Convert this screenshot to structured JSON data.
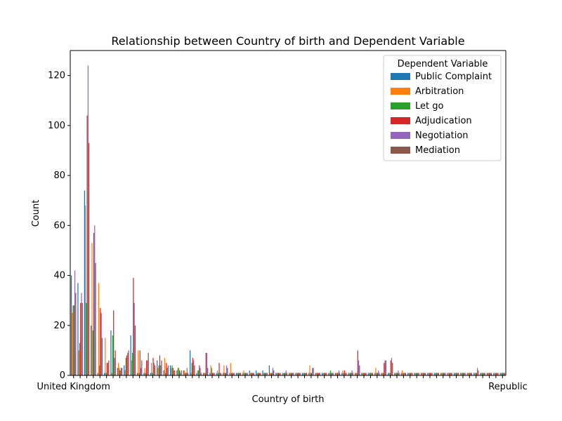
{
  "chart_data": {
    "type": "bar",
    "title": "Relationship between Country of birth and Dependent Variable",
    "xlabel": "Country of birth",
    "ylabel": "Count",
    "ylim": [
      0,
      130
    ],
    "yticks": [
      0,
      20,
      40,
      60,
      80,
      100,
      120
    ],
    "legend_title": "Dependent Variable",
    "legend_position": "top-right",
    "visible_category_labels": [
      "United Kingdom",
      "Republic"
    ],
    "colors": [
      "#1f77b4",
      "#ff7f0e",
      "#2ca02c",
      "#d62728",
      "#9467bd",
      "#8c564b"
    ],
    "series": [
      {
        "name": "Public Complaint",
        "values": [
          40,
          37,
          74,
          20,
          1,
          1,
          18,
          3,
          4,
          16,
          1,
          1,
          1,
          6,
          2,
          4,
          2,
          2,
          10,
          1,
          1,
          1,
          1,
          1,
          1,
          1,
          1,
          2,
          2,
          2,
          4,
          1,
          1,
          1,
          1,
          1,
          1,
          1,
          1,
          1,
          1,
          1,
          1,
          1,
          1,
          1,
          1,
          1,
          1,
          1,
          1,
          1,
          1,
          1,
          1,
          1,
          1,
          1,
          1,
          1,
          1,
          1,
          1,
          1,
          1,
          1
        ]
      },
      {
        "name": "Arbitration",
        "values": [
          25,
          10,
          68,
          53,
          37,
          15,
          1,
          5,
          2,
          6,
          10,
          3,
          5,
          3,
          7,
          3,
          3,
          2,
          1,
          2,
          1,
          4,
          2,
          4,
          5,
          1,
          2,
          1,
          1,
          1,
          1,
          1,
          1,
          1,
          1,
          1,
          4,
          1,
          1,
          1,
          1,
          2,
          1,
          1,
          1,
          1,
          3,
          1,
          1,
          1,
          2,
          1,
          1,
          1,
          1,
          1,
          1,
          1,
          1,
          1,
          1,
          1,
          1,
          1,
          1,
          1
        ]
      },
      {
        "name": "Let go",
        "values": [
          28,
          13,
          29,
          18,
          4,
          1,
          16,
          3,
          7,
          9,
          1,
          1,
          1,
          4,
          1,
          4,
          3,
          1,
          5,
          2,
          1,
          3,
          1,
          1,
          1,
          1,
          1,
          1,
          1,
          1,
          1,
          1,
          1,
          1,
          1,
          1,
          1,
          1,
          1,
          2,
          1,
          1,
          1,
          1,
          1,
          1,
          1,
          1,
          1,
          1,
          1,
          1,
          1,
          1,
          1,
          1,
          1,
          1,
          1,
          1,
          1,
          1,
          1,
          1,
          1,
          1
        ]
      },
      {
        "name": "Adjudication",
        "values": [
          28,
          29,
          104,
          57,
          27,
          5,
          26,
          2,
          8,
          39,
          10,
          6,
          7,
          8,
          5,
          3,
          2,
          1,
          7,
          4,
          9,
          1,
          5,
          1,
          1,
          1,
          1,
          1,
          1,
          1,
          1,
          1,
          1,
          1,
          1,
          1,
          1,
          1,
          1,
          1,
          1,
          2,
          1,
          10,
          1,
          1,
          1,
          5,
          6,
          1,
          1,
          1,
          1,
          1,
          1,
          1,
          1,
          1,
          1,
          1,
          1,
          1,
          1,
          1,
          1,
          1
        ]
      },
      {
        "name": "Negotiation",
        "values": [
          42,
          33,
          124,
          60,
          25,
          5,
          7,
          3,
          9,
          29,
          3,
          6,
          5,
          4,
          3,
          2,
          1,
          3,
          6,
          3,
          9,
          1,
          1,
          4,
          1,
          1,
          1,
          1,
          1,
          1,
          3,
          1,
          2,
          1,
          1,
          1,
          3,
          1,
          1,
          1,
          2,
          1,
          2,
          6,
          1,
          1,
          2,
          6,
          7,
          2,
          1,
          1,
          1,
          1,
          1,
          1,
          1,
          1,
          1,
          1,
          1,
          3,
          1,
          1,
          1,
          1
        ]
      },
      {
        "name": "Mediation",
        "values": [
          33,
          29,
          93,
          45,
          15,
          6,
          10,
          3,
          10,
          20,
          6,
          9,
          4,
          6,
          4,
          2,
          2,
          1,
          4,
          1,
          3,
          1,
          1,
          3,
          1,
          1,
          1,
          1,
          1,
          1,
          2,
          1,
          1,
          1,
          1,
          1,
          3,
          1,
          1,
          1,
          1,
          1,
          1,
          4,
          1,
          1,
          1,
          6,
          5,
          1,
          1,
          1,
          1,
          1,
          1,
          1,
          1,
          1,
          1,
          1,
          1,
          2,
          1,
          1,
          1,
          1
        ]
      }
    ]
  }
}
